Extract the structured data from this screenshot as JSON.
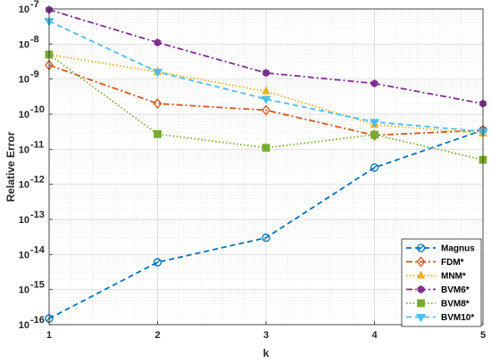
{
  "chart_data": {
    "type": "line",
    "xlabel": "k",
    "ylabel": "Relative Error",
    "xlim": [
      1,
      5
    ],
    "ylim": [
      1e-16,
      1e-07
    ],
    "y_scale": "log",
    "grid": true,
    "minor_grid": true,
    "legend_position": "bottom-right",
    "x": [
      1,
      2,
      3,
      4,
      5
    ],
    "x_ticks": [
      "1",
      "2",
      "3",
      "4",
      "5"
    ],
    "y_ticks": [
      {
        "base": "10",
        "exp": "-16"
      },
      {
        "base": "10",
        "exp": "-15"
      },
      {
        "base": "10",
        "exp": "-14"
      },
      {
        "base": "10",
        "exp": "-13"
      },
      {
        "base": "10",
        "exp": "-12"
      },
      {
        "base": "10",
        "exp": "-11"
      },
      {
        "base": "10",
        "exp": "-10"
      },
      {
        "base": "10",
        "exp": "-9"
      },
      {
        "base": "10",
        "exp": "-8"
      },
      {
        "base": "10",
        "exp": "-7"
      }
    ],
    "series": [
      {
        "name": "Magnus",
        "color": "#0072BD",
        "line": "dashed",
        "marker": "circle-cross",
        "values": [
          1.5e-16,
          6e-15,
          3e-14,
          3e-12,
          3.5e-11
        ]
      },
      {
        "name": "FDM*",
        "color": "#D95319",
        "line": "dashdot",
        "marker": "diamond",
        "values": [
          2.5e-09,
          2e-10,
          1.3e-10,
          2.5e-11,
          3.5e-11
        ]
      },
      {
        "name": "MNM*",
        "color": "#EDB120",
        "line": "dotted",
        "marker": "triangle-up",
        "values": [
          5e-09,
          1.6e-09,
          4.5e-10,
          5e-11,
          2.8e-11
        ]
      },
      {
        "name": "BVM6*",
        "color": "#7E2F8E",
        "line": "dashdot",
        "marker": "hexagon",
        "values": [
          9.5e-08,
          1.1e-08,
          1.5e-09,
          7.5e-10,
          2e-10
        ]
      },
      {
        "name": "BVM8*",
        "color": "#77AC30",
        "line": "dotted",
        "marker": "square",
        "values": [
          5e-09,
          2.7e-11,
          1.1e-11,
          2.6e-11,
          5e-12
        ]
      },
      {
        "name": "BVM10*",
        "color": "#4DBEEE",
        "line": "dashed",
        "marker": "triangle-down",
        "values": [
          4.5e-08,
          1.6e-09,
          2.7e-10,
          6e-11,
          3.2e-11
        ]
      }
    ]
  }
}
